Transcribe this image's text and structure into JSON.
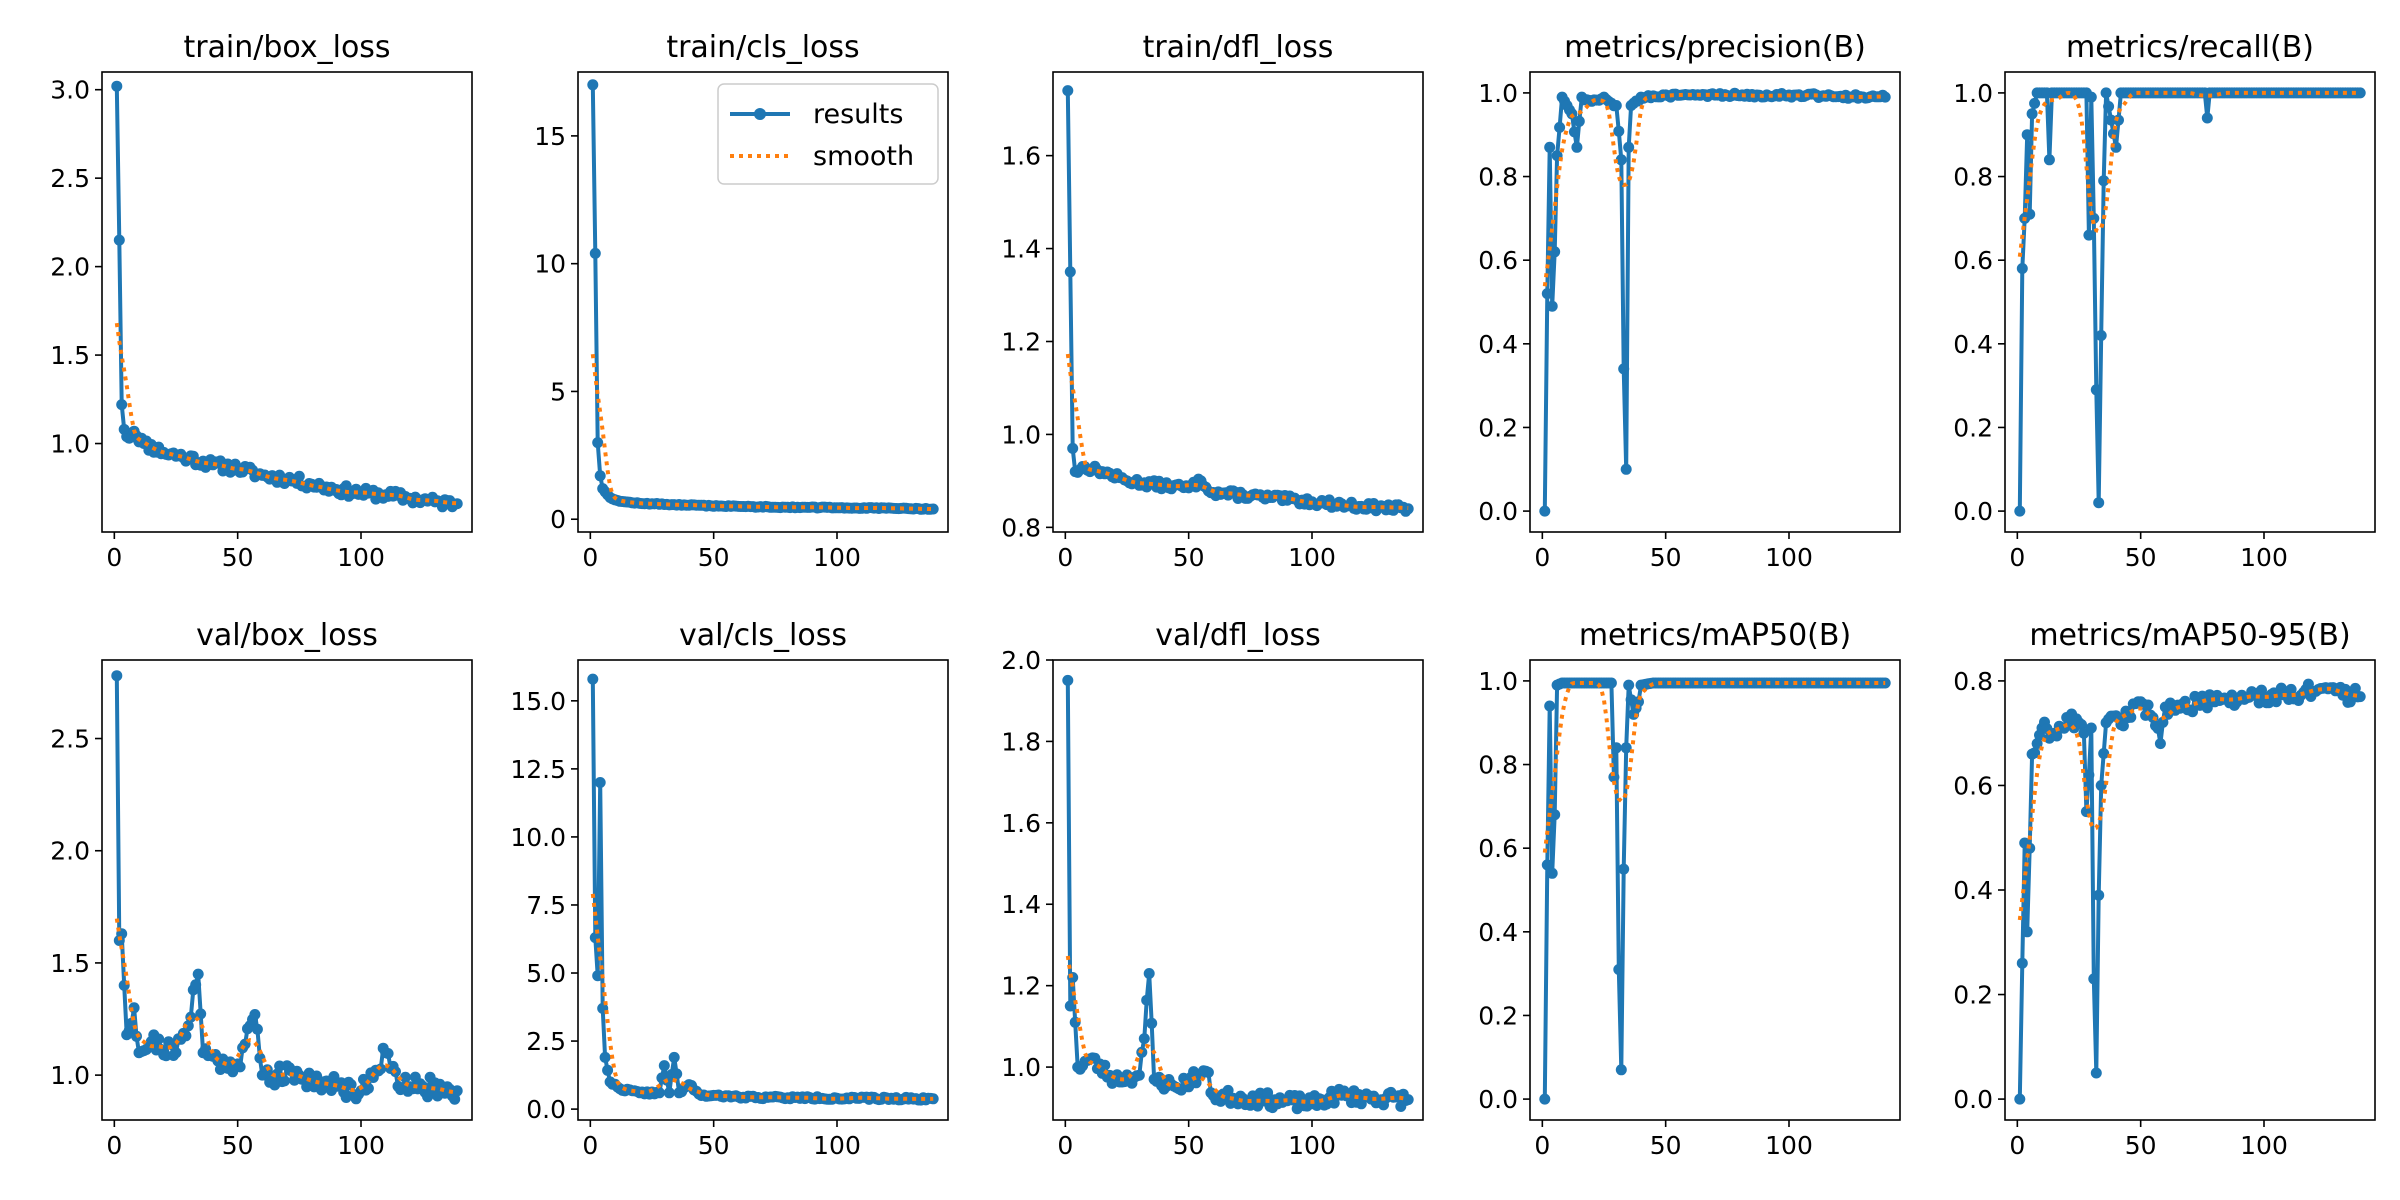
{
  "series_names": [
    "results",
    "smooth"
  ],
  "colors": {
    "results": "#1f77b4",
    "smooth": "#ff7f0e",
    "frame": "#000000"
  },
  "chart_data": [
    {
      "type": "line",
      "title": "train/box_loss",
      "xlim": [
        -5,
        145
      ],
      "ylim": [
        0.5,
        3.1
      ],
      "xticks": [
        0,
        50,
        100
      ],
      "yticks": [
        1.0,
        1.5,
        2.0,
        2.5,
        3.0
      ],
      "ytick_labels": [
        "1.0",
        "1.5",
        "2.0",
        "2.5",
        "3.0"
      ],
      "anchors": [
        [
          1,
          3.02
        ],
        [
          2,
          2.15
        ],
        [
          3,
          1.22
        ],
        [
          4,
          1.08
        ],
        [
          6,
          1.03
        ],
        [
          8,
          1.07
        ],
        [
          12,
          1.0
        ],
        [
          20,
          0.95
        ],
        [
          30,
          0.92
        ],
        [
          40,
          0.88
        ],
        [
          50,
          0.86
        ],
        [
          60,
          0.82
        ],
        [
          70,
          0.8
        ],
        [
          80,
          0.77
        ],
        [
          90,
          0.74
        ],
        [
          100,
          0.72
        ],
        [
          110,
          0.71
        ],
        [
          120,
          0.69
        ],
        [
          130,
          0.67
        ],
        [
          139,
          0.66
        ]
      ],
      "noise": 0.03,
      "seed": 11,
      "legend": false
    },
    {
      "type": "line",
      "title": "train/cls_loss",
      "xlim": [
        -5,
        145
      ],
      "ylim": [
        -0.5,
        17.5
      ],
      "xticks": [
        0,
        50,
        100
      ],
      "yticks": [
        0,
        5,
        10,
        15
      ],
      "ytick_labels": [
        "0",
        "5",
        "10",
        "15"
      ],
      "anchors": [
        [
          1,
          17.0
        ],
        [
          2,
          10.4
        ],
        [
          3,
          3.0
        ],
        [
          4,
          1.7
        ],
        [
          5,
          1.2
        ],
        [
          8,
          0.85
        ],
        [
          12,
          0.7
        ],
        [
          20,
          0.62
        ],
        [
          40,
          0.55
        ],
        [
          60,
          0.5
        ],
        [
          80,
          0.47
        ],
        [
          100,
          0.45
        ],
        [
          120,
          0.43
        ],
        [
          139,
          0.4
        ]
      ],
      "noise": 0.02,
      "seed": 12,
      "legend": true
    },
    {
      "type": "line",
      "title": "train/dfl_loss",
      "xlim": [
        -5,
        145
      ],
      "ylim": [
        0.79,
        1.78
      ],
      "xticks": [
        0,
        50,
        100
      ],
      "yticks": [
        0.8,
        1.0,
        1.2,
        1.4,
        1.6
      ],
      "ytick_labels": [
        "0.8",
        "1.0",
        "1.2",
        "1.4",
        "1.6"
      ],
      "anchors": [
        [
          1,
          1.74
        ],
        [
          2,
          1.35
        ],
        [
          3,
          0.97
        ],
        [
          4,
          0.92
        ],
        [
          8,
          0.93
        ],
        [
          15,
          0.92
        ],
        [
          25,
          0.9
        ],
        [
          40,
          0.89
        ],
        [
          50,
          0.885
        ],
        [
          55,
          0.9
        ],
        [
          60,
          0.875
        ],
        [
          80,
          0.865
        ],
        [
          100,
          0.855
        ],
        [
          120,
          0.845
        ],
        [
          139,
          0.84
        ]
      ],
      "noise": 0.008,
      "seed": 13,
      "legend": false
    },
    {
      "type": "line",
      "title": "metrics/precision(B)",
      "xlim": [
        -5,
        145
      ],
      "ylim": [
        -0.05,
        1.05
      ],
      "xticks": [
        0,
        50,
        100
      ],
      "yticks": [
        0.0,
        0.2,
        0.4,
        0.6,
        0.8,
        1.0
      ],
      "ytick_labels": [
        "0.0",
        "0.2",
        "0.4",
        "0.6",
        "0.8",
        "1.0"
      ],
      "anchors": [
        [
          1,
          0.0
        ],
        [
          2,
          0.52
        ],
        [
          3,
          0.87
        ],
        [
          4,
          0.49
        ],
        [
          5,
          0.62
        ],
        [
          6,
          0.85
        ],
        [
          8,
          0.99
        ],
        [
          10,
          0.97
        ],
        [
          12,
          0.95
        ],
        [
          14,
          0.87
        ],
        [
          16,
          0.99
        ],
        [
          20,
          0.98
        ],
        [
          25,
          0.99
        ],
        [
          30,
          0.97
        ],
        [
          32,
          0.84
        ],
        [
          33,
          0.34
        ],
        [
          34,
          0.1
        ],
        [
          35,
          0.87
        ],
        [
          36,
          0.97
        ],
        [
          40,
          0.99
        ],
        [
          60,
          0.995
        ],
        [
          100,
          0.995
        ],
        [
          139,
          0.99
        ]
      ],
      "noise": 0.005,
      "seed": 14,
      "legend": false
    },
    {
      "type": "line",
      "title": "metrics/recall(B)",
      "xlim": [
        -5,
        145
      ],
      "ylim": [
        -0.05,
        1.05
      ],
      "xticks": [
        0,
        50,
        100
      ],
      "yticks": [
        0.0,
        0.2,
        0.4,
        0.6,
        0.8,
        1.0
      ],
      "ytick_labels": [
        "0.0",
        "0.2",
        "0.4",
        "0.6",
        "0.8",
        "1.0"
      ],
      "anchors": [
        [
          1,
          0.0
        ],
        [
          2,
          0.58
        ],
        [
          3,
          0.7
        ],
        [
          4,
          0.9
        ],
        [
          5,
          0.71
        ],
        [
          6,
          0.95
        ],
        [
          8,
          1.0
        ],
        [
          12,
          1.0
        ],
        [
          13,
          0.84
        ],
        [
          14,
          1.0
        ],
        [
          28,
          1.0
        ],
        [
          29,
          0.66
        ],
        [
          30,
          0.99
        ],
        [
          31,
          0.7
        ],
        [
          32,
          0.29
        ],
        [
          33,
          0.02
        ],
        [
          34,
          0.42
        ],
        [
          35,
          0.79
        ],
        [
          36,
          1.0
        ],
        [
          40,
          0.87
        ],
        [
          42,
          1.0
        ],
        [
          76,
          1.0
        ],
        [
          77,
          0.94
        ],
        [
          78,
          1.0
        ],
        [
          139,
          1.0
        ]
      ],
      "noise": 0.0,
      "seed": 15,
      "legend": false
    },
    {
      "type": "line",
      "title": "val/box_loss",
      "xlim": [
        -5,
        145
      ],
      "ylim": [
        0.8,
        2.85
      ],
      "xticks": [
        0,
        50,
        100
      ],
      "yticks": [
        1.0,
        1.5,
        2.0,
        2.5
      ],
      "ytick_labels": [
        "1.0",
        "1.5",
        "2.0",
        "2.5"
      ],
      "anchors": [
        [
          1,
          2.78
        ],
        [
          2,
          1.6
        ],
        [
          3,
          1.63
        ],
        [
          4,
          1.4
        ],
        [
          5,
          1.18
        ],
        [
          8,
          1.3
        ],
        [
          10,
          1.1
        ],
        [
          15,
          1.15
        ],
        [
          25,
          1.1
        ],
        [
          30,
          1.22
        ],
        [
          32,
          1.38
        ],
        [
          34,
          1.45
        ],
        [
          36,
          1.1
        ],
        [
          45,
          1.05
        ],
        [
          50,
          1.05
        ],
        [
          57,
          1.27
        ],
        [
          60,
          1.0
        ],
        [
          75,
          1.0
        ],
        [
          90,
          0.95
        ],
        [
          100,
          0.93
        ],
        [
          110,
          1.1
        ],
        [
          115,
          0.95
        ],
        [
          125,
          0.95
        ],
        [
          139,
          0.93
        ]
      ],
      "noise": 0.045,
      "seed": 21,
      "legend": false
    },
    {
      "type": "line",
      "title": "val/cls_loss",
      "xlim": [
        -5,
        145
      ],
      "ylim": [
        -0.4,
        16.5
      ],
      "xticks": [
        0,
        50,
        100
      ],
      "yticks": [
        0.0,
        2.5,
        5.0,
        7.5,
        10.0,
        12.5,
        15.0
      ],
      "ytick_labels": [
        "0.0",
        "2.5",
        "5.0",
        "7.5",
        "10.0",
        "12.5",
        "15.0"
      ],
      "anchors": [
        [
          1,
          15.8
        ],
        [
          2,
          6.3
        ],
        [
          3,
          4.9
        ],
        [
          4,
          12.0
        ],
        [
          5,
          3.7
        ],
        [
          6,
          1.9
        ],
        [
          8,
          1.0
        ],
        [
          12,
          0.75
        ],
        [
          20,
          0.6
        ],
        [
          28,
          0.6
        ],
        [
          30,
          1.6
        ],
        [
          32,
          0.6
        ],
        [
          34,
          1.9
        ],
        [
          36,
          0.6
        ],
        [
          40,
          0.9
        ],
        [
          45,
          0.5
        ],
        [
          60,
          0.45
        ],
        [
          80,
          0.42
        ],
        [
          100,
          0.4
        ],
        [
          139,
          0.38
        ]
      ],
      "noise": 0.05,
      "seed": 22,
      "legend": false
    },
    {
      "type": "line",
      "title": "val/dfl_loss",
      "xlim": [
        -5,
        145
      ],
      "ylim": [
        0.87,
        2.0
      ],
      "xticks": [
        0,
        50,
        100
      ],
      "yticks": [
        1.0,
        1.2,
        1.4,
        1.6,
        1.8,
        2.0
      ],
      "ytick_labels": [
        "1.0",
        "1.2",
        "1.4",
        "1.6",
        "1.8",
        "2.0"
      ],
      "anchors": [
        [
          1,
          1.95
        ],
        [
          2,
          1.15
        ],
        [
          3,
          1.22
        ],
        [
          4,
          1.11
        ],
        [
          5,
          1.0
        ],
        [
          10,
          1.02
        ],
        [
          20,
          0.97
        ],
        [
          30,
          0.98
        ],
        [
          32,
          1.07
        ],
        [
          34,
          1.23
        ],
        [
          36,
          0.97
        ],
        [
          45,
          0.95
        ],
        [
          57,
          0.99
        ],
        [
          60,
          0.93
        ],
        [
          80,
          0.92
        ],
        [
          100,
          0.91
        ],
        [
          110,
          0.93
        ],
        [
          139,
          0.92
        ]
      ],
      "noise": 0.018,
      "seed": 23,
      "legend": false
    },
    {
      "type": "line",
      "title": "metrics/mAP50(B)",
      "xlim": [
        -5,
        145
      ],
      "ylim": [
        -0.05,
        1.05
      ],
      "xticks": [
        0,
        50,
        100
      ],
      "yticks": [
        0.0,
        0.2,
        0.4,
        0.6,
        0.8,
        1.0
      ],
      "ytick_labels": [
        "0.0",
        "0.2",
        "0.4",
        "0.6",
        "0.8",
        "1.0"
      ],
      "anchors": [
        [
          1,
          0.0
        ],
        [
          2,
          0.56
        ],
        [
          3,
          0.94
        ],
        [
          4,
          0.54
        ],
        [
          5,
          0.68
        ],
        [
          6,
          0.99
        ],
        [
          8,
          0.995
        ],
        [
          28,
          0.995
        ],
        [
          29,
          0.77
        ],
        [
          30,
          0.84
        ],
        [
          31,
          0.31
        ],
        [
          32,
          0.07
        ],
        [
          33,
          0.55
        ],
        [
          34,
          0.84
        ],
        [
          35,
          0.99
        ],
        [
          37,
          0.92
        ],
        [
          39,
          0.95
        ],
        [
          40,
          0.99
        ],
        [
          45,
          0.995
        ],
        [
          139,
          0.995
        ]
      ],
      "noise": 0.0,
      "seed": 24,
      "legend": false
    },
    {
      "type": "line",
      "title": "metrics/mAP50-95(B)",
      "xlim": [
        -5,
        145
      ],
      "ylim": [
        -0.04,
        0.84
      ],
      "xticks": [
        0,
        50,
        100
      ],
      "yticks": [
        0.0,
        0.2,
        0.4,
        0.6,
        0.8
      ],
      "ytick_labels": [
        "0.0",
        "0.2",
        "0.4",
        "0.6",
        "0.8"
      ],
      "anchors": [
        [
          1,
          0.0
        ],
        [
          2,
          0.26
        ],
        [
          3,
          0.49
        ],
        [
          4,
          0.32
        ],
        [
          5,
          0.48
        ],
        [
          6,
          0.66
        ],
        [
          8,
          0.68
        ],
        [
          10,
          0.71
        ],
        [
          15,
          0.7
        ],
        [
          20,
          0.73
        ],
        [
          25,
          0.72
        ],
        [
          27,
          0.7
        ],
        [
          28,
          0.55
        ],
        [
          30,
          0.71
        ],
        [
          31,
          0.23
        ],
        [
          32,
          0.05
        ],
        [
          33,
          0.39
        ],
        [
          34,
          0.6
        ],
        [
          36,
          0.72
        ],
        [
          45,
          0.73
        ],
        [
          50,
          0.76
        ],
        [
          55,
          0.73
        ],
        [
          58,
          0.68
        ],
        [
          60,
          0.75
        ],
        [
          80,
          0.76
        ],
        [
          100,
          0.77
        ],
        [
          120,
          0.78
        ],
        [
          139,
          0.77
        ]
      ],
      "noise": 0.015,
      "seed": 25,
      "legend": false
    }
  ]
}
